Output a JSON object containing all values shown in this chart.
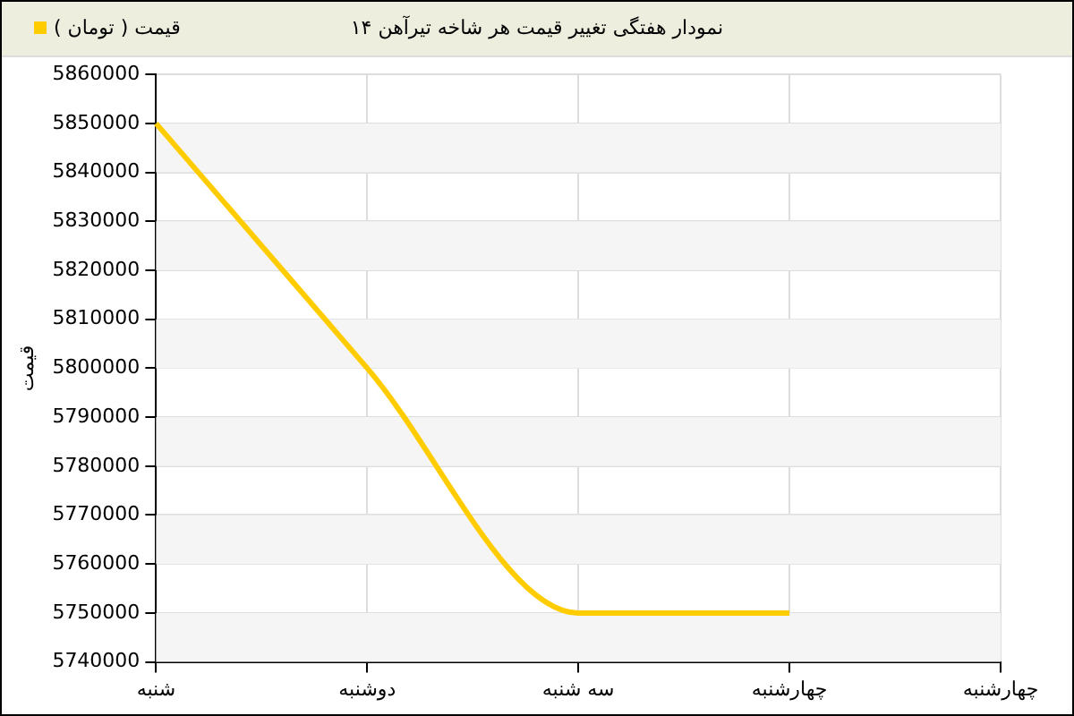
{
  "chart_data": {
    "type": "line",
    "title": "نمودار هفتگی تغییر قیمت هر شاخه تیرآهن ۱۴",
    "ylabel": "قیمت",
    "categories": [
      "شنبه",
      "دوشنبه",
      "سه شنبه",
      "چهارشنبه",
      "چهارشنبه"
    ],
    "series": [
      {
        "name": "قیمت ( تومان )",
        "color": "#ffcc00",
        "values": [
          5850000,
          5800000,
          5750000,
          5750000,
          null
        ]
      }
    ],
    "ylim": [
      5740000,
      5860000
    ],
    "yticks": [
      5740000,
      5750000,
      5760000,
      5770000,
      5780000,
      5790000,
      5800000,
      5810000,
      5820000,
      5830000,
      5840000,
      5850000,
      5860000
    ],
    "grid": true,
    "legend": "top left",
    "marker": "none",
    "line_style": "solid"
  }
}
